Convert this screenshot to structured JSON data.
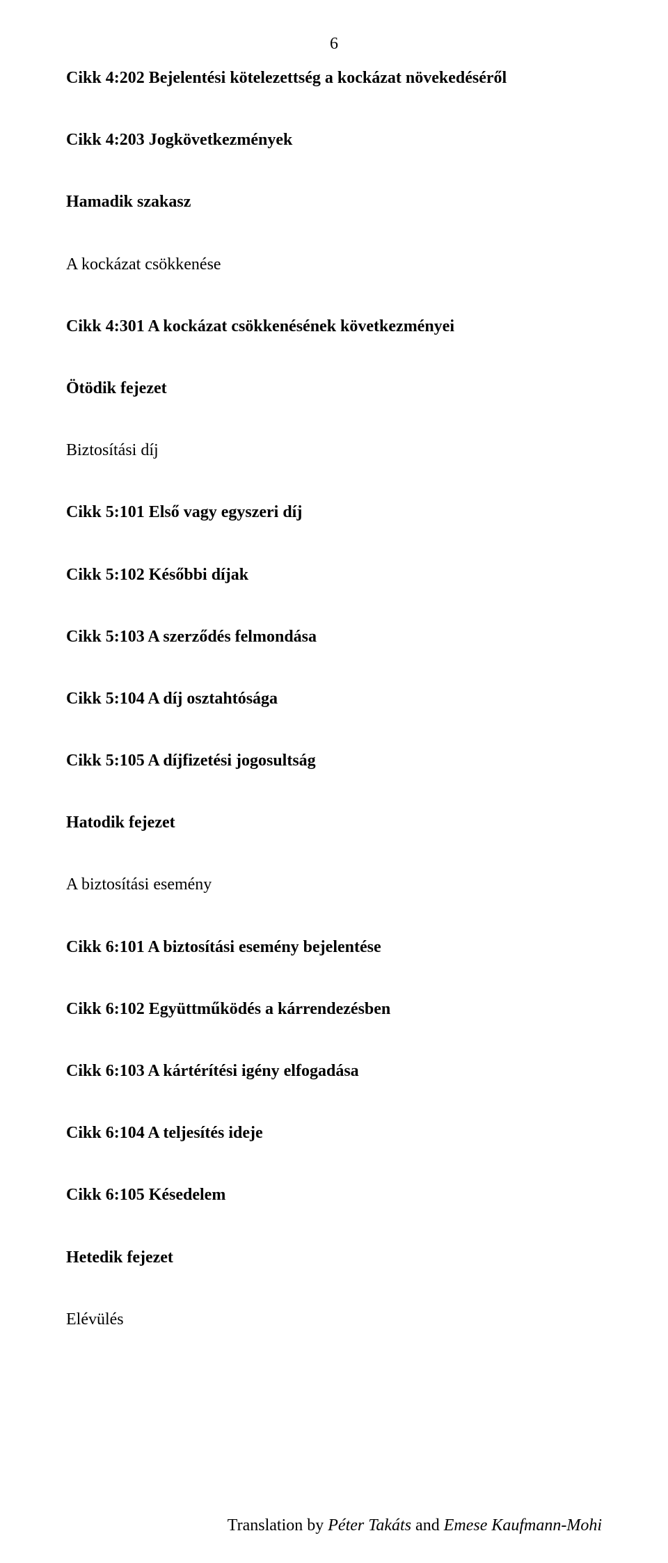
{
  "pageNumber": "6",
  "entries": [
    {
      "text": "Cikk 4:202 Bejelentési kötelezettség a kockázat növekedéséről",
      "bold": true
    },
    {
      "text": "Cikk 4:203 Jogkövetkezmények",
      "bold": true
    },
    {
      "text": "Hamadik szakasz",
      "bold": true
    },
    {
      "text": "A kockázat csökkenése",
      "bold": false
    },
    {
      "text": "Cikk 4:301 A kockázat csökkenésének következményei",
      "bold": true
    },
    {
      "text": "Ötödik fejezet",
      "bold": true
    },
    {
      "text": "Biztosítási díj",
      "bold": false
    },
    {
      "text": "Cikk 5:101 Első vagy egyszeri díj",
      "bold": true
    },
    {
      "text": "Cikk 5:102 Későbbi díjak",
      "bold": true
    },
    {
      "text": "Cikk 5:103 A szerződés felmondása",
      "bold": true
    },
    {
      "text": "Cikk 5:104 A díj osztahtósága",
      "bold": true
    },
    {
      "text": "Cikk 5:105 A díjfizetési jogosultság",
      "bold": true
    },
    {
      "text": "Hatodik fejezet",
      "bold": true
    },
    {
      "text": "A biztosítási esemény",
      "bold": false
    },
    {
      "text": "Cikk 6:101 A biztosítási esemény bejelentése",
      "bold": true
    },
    {
      "text": "Cikk 6:102 Együttműködés a kárrendezésben",
      "bold": true
    },
    {
      "text": "Cikk 6:103 A kártérítési igény elfogadása",
      "bold": true
    },
    {
      "text": "Cikk 6:104 A teljesítés ideje",
      "bold": true
    },
    {
      "text": "Cikk 6:105 Késedelem",
      "bold": true
    },
    {
      "text": "Hetedik fejezet",
      "bold": true
    },
    {
      "text": "Elévülés",
      "bold": false
    }
  ],
  "footer": {
    "prefix": "Translation by ",
    "name1": "Péter Takáts",
    "middle": " and ",
    "name2": "Emese Kaufmann-Mohi"
  }
}
